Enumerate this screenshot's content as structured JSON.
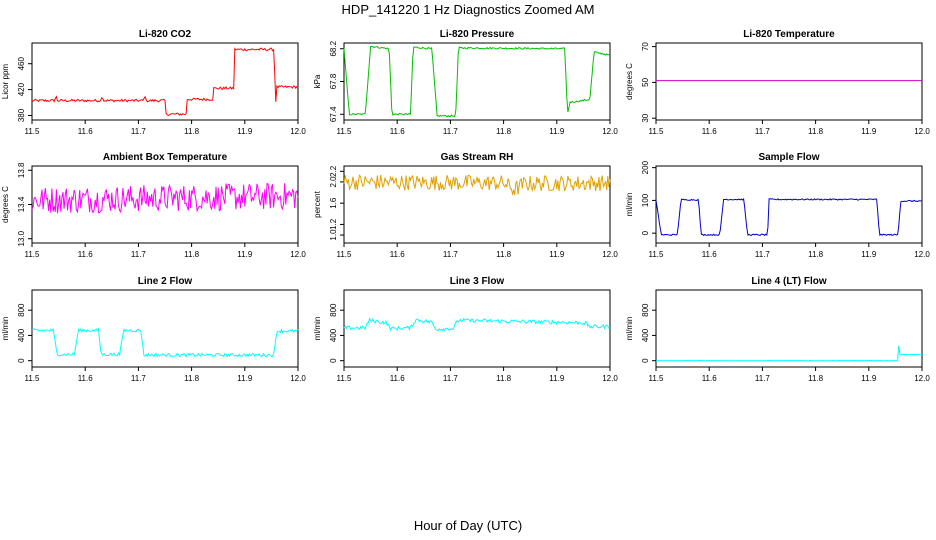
{
  "title": "HDP_141220  1 Hz Diagnostics Zoomed AM",
  "xlabel": "Hour of Day (UTC)",
  "chart_data": [
    {
      "type": "line",
      "title": "Li-820 CO2",
      "ylabel": "Licor ppm",
      "color": "#ff0000",
      "xlim": [
        11.5,
        12.0
      ],
      "ylim": [
        373,
        492
      ],
      "yticks": [
        "380",
        "420",
        "460"
      ],
      "ytick_values": [
        380,
        420,
        460
      ],
      "xticks": [
        "11.5",
        "11.6",
        "11.7",
        "11.8",
        "11.9",
        "12.0"
      ],
      "x": [
        11.5,
        11.543,
        11.545,
        11.547,
        11.63,
        11.632,
        11.634,
        11.71,
        11.712,
        11.714,
        11.75,
        11.751,
        11.79,
        11.791,
        11.84,
        11.841,
        11.88,
        11.881,
        11.955,
        11.958,
        11.96,
        12.0
      ],
      "values": [
        403,
        403,
        412,
        403,
        403,
        413,
        403,
        403,
        413,
        403,
        403,
        382,
        382,
        405,
        405,
        422,
        422,
        482,
        482,
        398,
        424,
        424
      ],
      "noise": 2
    },
    {
      "type": "line",
      "title": "Li-820 Pressure",
      "ylabel": "kPa",
      "color": "#00c000",
      "xlim": [
        11.5,
        12.0
      ],
      "ylim": [
        67.33,
        68.27
      ],
      "yticks": [
        "67.4",
        "67.8",
        "68.2"
      ],
      "ytick_values": [
        67.4,
        67.8,
        68.2
      ],
      "xticks": [
        "11.5",
        "11.6",
        "11.7",
        "11.8",
        "11.9",
        "12.0"
      ],
      "x": [
        11.5,
        11.51,
        11.54,
        11.55,
        11.585,
        11.59,
        11.625,
        11.63,
        11.665,
        11.675,
        11.71,
        11.715,
        11.915,
        11.92,
        11.925,
        11.93,
        11.962,
        11.97,
        12.0
      ],
      "values": [
        68.2,
        67.4,
        67.4,
        68.23,
        68.2,
        67.4,
        67.4,
        68.22,
        68.2,
        67.38,
        67.38,
        68.21,
        68.2,
        67.4,
        67.55,
        67.55,
        67.58,
        68.16,
        68.12
      ],
      "noise": 0.01
    },
    {
      "type": "line",
      "title": "Li-820 Temperature",
      "ylabel": "degrees C",
      "color": "#cc00cc",
      "xlim": [
        11.5,
        12.0
      ],
      "ylim": [
        29,
        72
      ],
      "yticks": [
        "30",
        "50",
        "70"
      ],
      "ytick_values": [
        30,
        50,
        70
      ],
      "xticks": [
        "11.5",
        "11.6",
        "11.7",
        "11.8",
        "11.9",
        "12.0"
      ],
      "x": [
        11.5,
        12.0
      ],
      "values": [
        51,
        51
      ],
      "noise": 0
    },
    {
      "type": "line",
      "title": "Ambient Box Temperature",
      "ylabel": "degrees C",
      "color": "#ff00ff",
      "xlim": [
        11.5,
        12.0
      ],
      "ylim": [
        12.95,
        13.85
      ],
      "yticks": [
        "13.0",
        "13.4",
        "13.8"
      ],
      "ytick_values": [
        13.0,
        13.4,
        13.8
      ],
      "xticks": [
        "11.5",
        "11.6",
        "11.7",
        "11.8",
        "11.9",
        "12.0"
      ],
      "x": [
        11.5,
        12.0
      ],
      "values": [
        13.45,
        13.5
      ],
      "noise": 0.16
    },
    {
      "type": "line",
      "title": "Gas Stream RH",
      "ylabel": "percent",
      "color": "#e0a000",
      "xlim": [
        11.5,
        12.0
      ],
      "ylim": [
        0.85,
        2.3
      ],
      "yticks": [
        "1.0",
        "1.2",
        "1.6",
        "2.0",
        "2.2"
      ],
      "ytick_values": [
        1.0,
        1.2,
        1.6,
        2.0,
        2.2
      ],
      "xticks": [
        "11.5",
        "11.6",
        "11.7",
        "11.8",
        "11.9",
        "12.0"
      ],
      "x": [
        11.5,
        11.8,
        11.82,
        11.84,
        12.0
      ],
      "values": [
        2.0,
        1.98,
        1.85,
        1.97,
        1.98
      ],
      "noise": 0.15
    },
    {
      "type": "line",
      "title": "Sample Flow",
      "ylabel": "ml/min",
      "color": "#0000cc",
      "xlim": [
        11.5,
        12.0
      ],
      "ylim": [
        -30,
        205
      ],
      "yticks": [
        "0",
        "100",
        "200"
      ],
      "ytick_values": [
        0,
        100,
        200
      ],
      "xticks": [
        "11.5",
        "11.6",
        "11.7",
        "11.8",
        "11.9",
        "12.0"
      ],
      "x": [
        11.5,
        11.51,
        11.54,
        11.547,
        11.58,
        11.585,
        11.62,
        11.627,
        11.665,
        11.672,
        11.71,
        11.712,
        11.915,
        11.92,
        11.955,
        11.96,
        12.0
      ],
      "values": [
        100,
        -5,
        -5,
        102,
        102,
        -5,
        -5,
        103,
        103,
        -5,
        -5,
        103,
        103,
        -5,
        -5,
        98,
        98
      ],
      "noise": 2
    },
    {
      "type": "line",
      "title": "Line 2 Flow",
      "ylabel": "ml/min",
      "color": "#00ffff",
      "xlim": [
        11.5,
        12.0
      ],
      "ylim": [
        -100,
        1120
      ],
      "yticks": [
        "0",
        "400",
        "800"
      ],
      "ytick_values": [
        0,
        400,
        800
      ],
      "xticks": [
        "11.5",
        "11.6",
        "11.7",
        "11.8",
        "11.9",
        "12.0"
      ],
      "x": [
        11.5,
        11.54,
        11.547,
        11.58,
        11.587,
        11.625,
        11.63,
        11.665,
        11.672,
        11.705,
        11.71,
        11.955,
        11.96,
        12.0
      ],
      "values": [
        480,
        480,
        100,
        100,
        480,
        480,
        100,
        100,
        480,
        480,
        90,
        90,
        470,
        470
      ],
      "noise": 25
    },
    {
      "type": "line",
      "title": "Line 3 Flow",
      "ylabel": "ml/min",
      "color": "#00ffff",
      "xlim": [
        11.5,
        12.0
      ],
      "ylim": [
        -100,
        1120
      ],
      "yticks": [
        "0",
        "400",
        "800"
      ],
      "ytick_values": [
        0,
        400,
        800
      ],
      "xticks": [
        "11.5",
        "11.6",
        "11.7",
        "11.8",
        "11.9",
        "12.0"
      ],
      "x": [
        11.5,
        11.54,
        11.547,
        11.58,
        11.587,
        11.625,
        11.635,
        11.665,
        11.672,
        11.705,
        11.715,
        11.955,
        11.96,
        12.0
      ],
      "values": [
        520,
        520,
        640,
        600,
        510,
        520,
        650,
        610,
        500,
        510,
        640,
        600,
        540,
        540
      ],
      "noise": 30
    },
    {
      "type": "line",
      "title": "Line 4 (LT) Flow",
      "ylabel": "ml/min",
      "color": "#00ffff",
      "xlim": [
        11.5,
        12.0
      ],
      "ylim": [
        -100,
        1120
      ],
      "yticks": [
        "0",
        "400",
        "800"
      ],
      "ytick_values": [
        0,
        400,
        800
      ],
      "xticks": [
        "11.5",
        "11.6",
        "11.7",
        "11.8",
        "11.9",
        "12.0"
      ],
      "x": [
        11.5,
        11.955,
        11.956,
        11.957,
        11.96,
        12.0
      ],
      "values": [
        0,
        0,
        280,
        100,
        100,
        100
      ],
      "noise": 3
    }
  ]
}
